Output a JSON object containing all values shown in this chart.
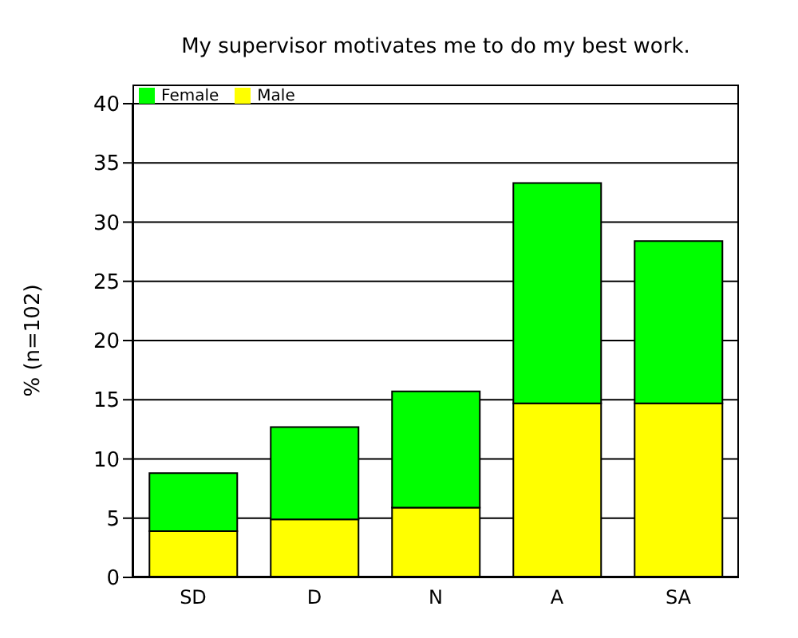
{
  "chart_data": {
    "type": "bar",
    "title": "My supervisor motivates me to do my best work.",
    "ylabel": "% (n=102)",
    "categories": [
      "SD",
      "D",
      "N",
      "A",
      "SA"
    ],
    "stacked": true,
    "series": [
      {
        "name": "Male",
        "color": "#ffff00",
        "values": [
          3.9,
          4.9,
          5.9,
          14.7,
          14.7
        ]
      },
      {
        "name": "Female",
        "color": "#00ff00",
        "values": [
          4.9,
          7.8,
          9.8,
          18.6,
          13.7
        ]
      }
    ],
    "ylim": [
      0,
      40
    ],
    "yticks": [
      0,
      5,
      10,
      15,
      20,
      25,
      30,
      35,
      40
    ],
    "grid": "y",
    "legend": "top left"
  }
}
